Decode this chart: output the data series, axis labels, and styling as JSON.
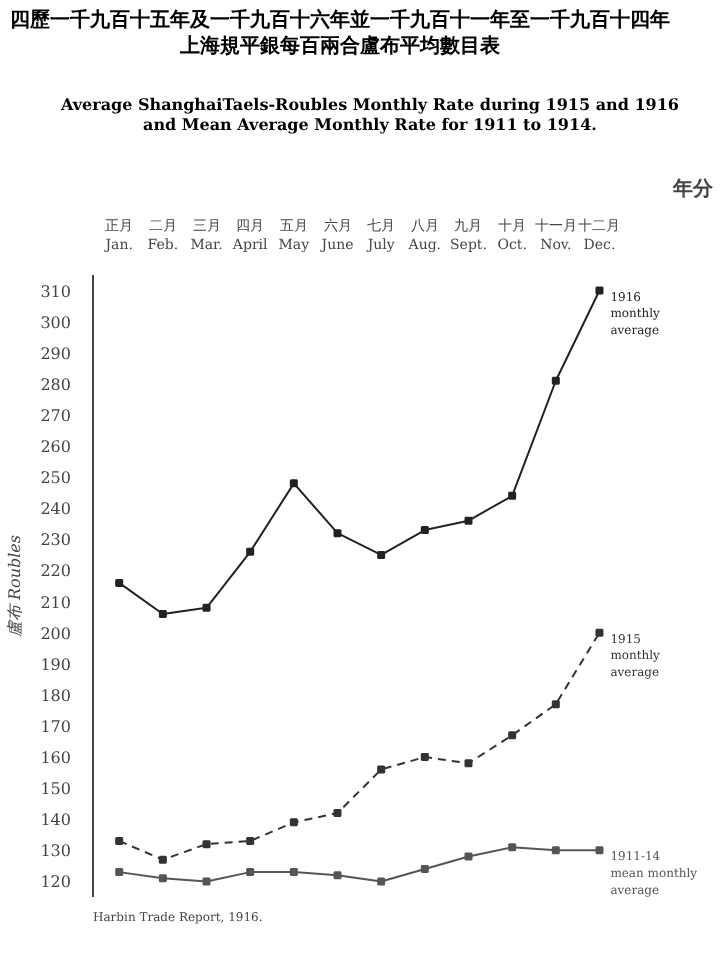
{
  "chart_data": {
    "type": "line",
    "title": "四歷一千九百十五年及一千九百十六年並一千九百十一年至一千九百十四年上海規平銀每百兩合盧布平均數目表",
    "subtitle": "Average ShanghaiTaels-Roubles Monthly Rate during 1915 and 1916\nand Mean Average Monthly Rate for 1911 to 1914.",
    "ylabel": "盧布 Roubles",
    "categories": [
      "正月\nJan.",
      "二月\nFeb.",
      "三月\nMar.",
      "四月\nApril",
      "五月\nMay",
      "六月\nJune",
      "七月\nJuly",
      "八月\nAug.",
      "九月\nSept.",
      "十月\nOct.",
      "十一月\nNov.",
      "十二月\nDec."
    ],
    "series": [
      {
        "name": "1916 monthly average",
        "color": "#222222",
        "line_style": "solid",
        "values": [
          216,
          206,
          208,
          226,
          248,
          232,
          225,
          233,
          236,
          244,
          281,
          310
        ]
      },
      {
        "name": "1915 monthly average",
        "color": "#333333",
        "line_style": "dashed",
        "values": [
          133,
          127,
          132,
          133,
          139,
          142,
          156,
          160,
          158,
          167,
          177,
          200
        ]
      },
      {
        "name": "1911-14 mean monthly average",
        "color": "#555555",
        "line_style": "solid",
        "values": [
          123,
          121,
          120,
          123,
          123,
          122,
          120,
          124,
          128,
          131,
          130,
          130
        ]
      }
    ],
    "ylim": [
      115,
      315
    ],
    "yticks": [
      120,
      130,
      140,
      150,
      160,
      170,
      180,
      190,
      200,
      210,
      220,
      230,
      240,
      250,
      260,
      270,
      280,
      290,
      300,
      310
    ],
    "marker": "square",
    "grid": false,
    "annotations": [
      "年分",
      "Harbin Trade Report, 1916."
    ]
  }
}
